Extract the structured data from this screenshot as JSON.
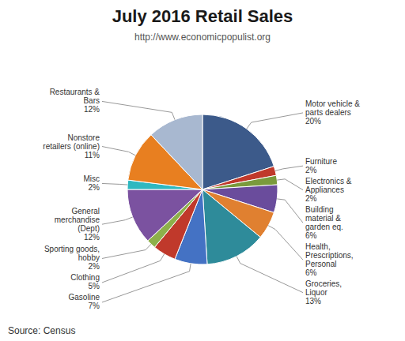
{
  "chart_data": {
    "type": "pie",
    "title": "July 2016 Retail Sales",
    "subtitle": "http://www.economicpopulist.org",
    "source": "Source: Census",
    "categories": [
      "Motor vehicle &\nparts dealers",
      "Furniture",
      "Electronics &\nAppliances",
      "Building\nmaterial &\ngarden eq.",
      "Health,\nPrescriptions,\nPersonal",
      "Groceries,\nLiquor",
      "Gasoline",
      "Clothing",
      "Sporting goods,\nhobby",
      "General\nmerchandise\n(Dept)",
      "Misc",
      "Nonstore\nretailers (online)",
      "Restaurants &\nBars"
    ],
    "values": [
      20,
      2,
      2,
      6,
      6,
      13,
      7,
      5,
      2,
      12,
      2,
      11,
      12
    ],
    "value_labels": [
      "20%",
      "2%",
      "2%",
      "6%",
      "6%",
      "13%",
      "7%",
      "5%",
      "2%",
      "12%",
      "2%",
      "11%",
      "12%"
    ],
    "colors": [
      "#3c5a8a",
      "#c0392b",
      "#7a9a3c",
      "#6a4c9c",
      "#e08030",
      "#2e8b9a",
      "#4472c4",
      "#c0392b",
      "#8db04a",
      "#7b52a0",
      "#2eb8c0",
      "#e87f20",
      "#a8b8d0"
    ]
  }
}
